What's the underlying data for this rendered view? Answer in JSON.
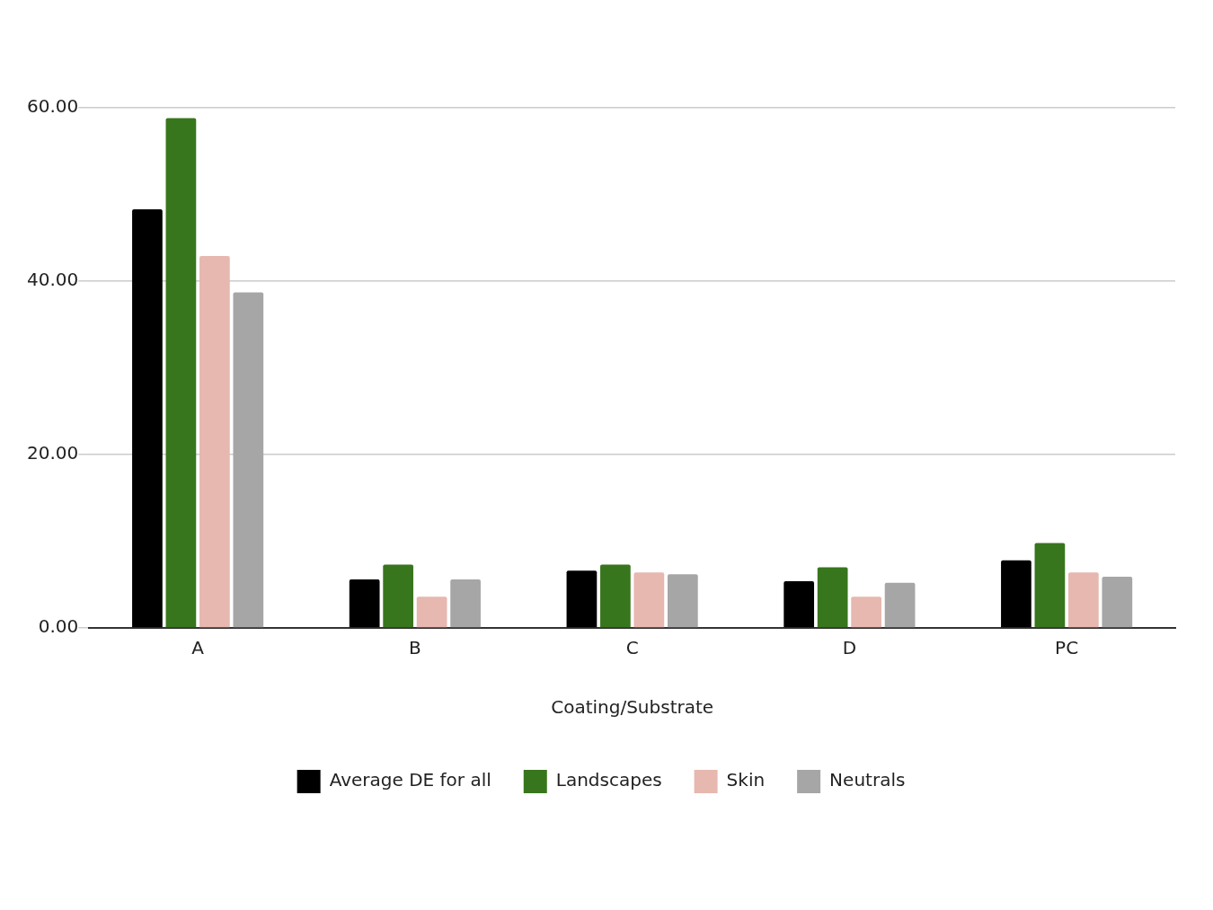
{
  "chart_data": {
    "type": "bar",
    "xlabel": "Coating/Substrate",
    "categories": [
      "A",
      "B",
      "C",
      "D",
      "PC"
    ],
    "series": [
      {
        "name": "Average DE for all",
        "color": "#000000",
        "values": [
          48.3,
          5.6,
          6.6,
          5.4,
          7.8
        ]
      },
      {
        "name": "Landscapes",
        "color": "#38761d",
        "values": [
          58.8,
          7.3,
          7.3,
          7.0,
          9.8
        ]
      },
      {
        "name": "Skin",
        "color": "#e6b8af",
        "values": [
          42.9,
          3.6,
          6.4,
          3.6,
          6.4
        ]
      },
      {
        "name": "Neutrals",
        "color": "#a6a6a6",
        "values": [
          38.7,
          5.6,
          6.2,
          5.2,
          5.9
        ]
      }
    ],
    "ylim": [
      0,
      60
    ],
    "yticks": [
      {
        "value": 0,
        "label": "0.00"
      },
      {
        "value": 20,
        "label": "20.00"
      },
      {
        "value": 40,
        "label": "40.00"
      },
      {
        "value": 60,
        "label": "60.00"
      }
    ],
    "grid": "y",
    "legend": "bottom"
  }
}
